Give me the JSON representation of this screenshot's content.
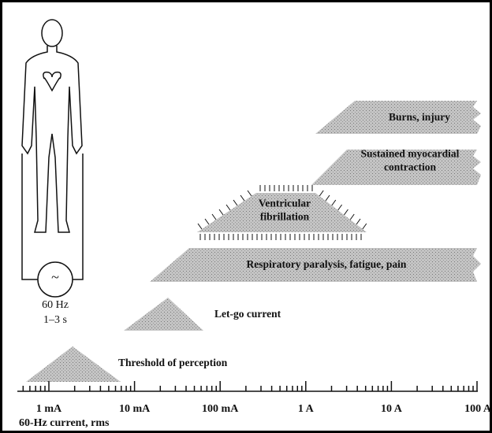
{
  "figure": {
    "source_symbol": "~",
    "frequency": "60 Hz",
    "duration": "1–3 s"
  },
  "regions": [
    {
      "lines": [
        "Burns, injury"
      ]
    },
    {
      "lines": [
        "Sustained myocardial",
        "contraction"
      ]
    },
    {
      "lines": [
        "Ventricular",
        "fibrillation"
      ]
    },
    {
      "lines": [
        "Respiratory paralysis, fatigue, pain"
      ]
    },
    {
      "lines": [
        "Let-go current"
      ]
    },
    {
      "lines": [
        "Threshold of perception"
      ]
    }
  ],
  "axis": {
    "tick_labels": [
      "1 mA",
      "10 mA",
      "100 mA",
      "1 A",
      "10 A",
      "100 A"
    ],
    "title": "60-Hz current, rms"
  }
}
